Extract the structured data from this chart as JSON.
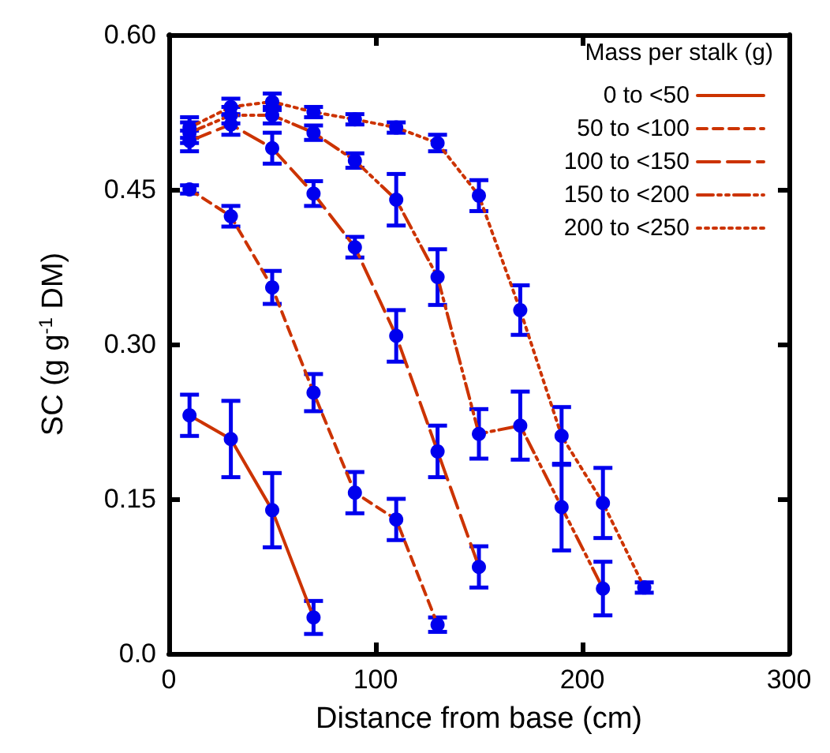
{
  "chart_data": {
    "type": "line",
    "xlabel": "Distance from base (cm)",
    "ylabel": "SC (g g$^{-1}$ DM)",
    "legend_title": "Mass per stalk (g)",
    "legend": "top right",
    "marker": "circle",
    "grid": false,
    "xlim": [
      0,
      300
    ],
    "xticks": [
      0,
      100,
      200,
      300
    ],
    "ylim": [
      0,
      0.6
    ],
    "yticks": [
      {
        "value": 0,
        "label": "0.0"
      },
      0.15,
      {
        "value": 0.3,
        "label": "0.30"
      },
      0.45,
      {
        "value": 0.6,
        "label": "0.60"
      }
    ],
    "series": [
      {
        "name": "0 to <50",
        "color": "#cc3300",
        "line_style": "solid",
        "x": [
          10,
          30,
          50,
          70
        ],
        "values": [
          0.231,
          0.208,
          0.139,
          0.035
        ],
        "errors": [
          0.02,
          0.037,
          0.036,
          0.016
        ]
      },
      {
        "name": "50 to <100",
        "color": "#cc3300",
        "line_style": "dashed",
        "x": [
          10,
          30,
          50,
          70,
          90,
          110,
          130
        ],
        "values": [
          0.45,
          0.424,
          0.355,
          0.253,
          0.156,
          0.13,
          0.028
        ],
        "errors": [
          0.004,
          0.01,
          0.016,
          0.018,
          0.02,
          0.02,
          0.007
        ]
      },
      {
        "name": "100 to <150",
        "color": "#cc3300",
        "line_style": "dashed",
        "x": [
          10,
          30,
          50,
          70,
          90,
          110,
          130,
          150
        ],
        "values": [
          0.497,
          0.513,
          0.49,
          0.446,
          0.394,
          0.308,
          0.196,
          0.084
        ],
        "errors": [
          0.01,
          0.01,
          0.015,
          0.012,
          0.01,
          0.025,
          0.025,
          0.02
        ]
      },
      {
        "name": "150 to <200",
        "color": "#cc3300",
        "line_style": "dashed",
        "x": [
          10,
          30,
          50,
          70,
          90,
          110,
          130,
          150,
          170,
          190,
          210
        ],
        "values": [
          0.505,
          0.522,
          0.522,
          0.505,
          0.478,
          0.44,
          0.365,
          0.213,
          0.221,
          0.142,
          0.063
        ],
        "errors": [
          0.01,
          0.008,
          0.008,
          0.007,
          0.007,
          0.025,
          0.027,
          0.024,
          0.033,
          0.042,
          0.026
        ]
      },
      {
        "name": "200 to <250",
        "color": "#cc3300",
        "line_style": "dotted",
        "x": [
          10,
          30,
          50,
          70,
          90,
          110,
          130,
          150,
          170,
          190,
          210,
          230
        ],
        "values": [
          0.51,
          0.53,
          0.535,
          0.525,
          0.518,
          0.51,
          0.495,
          0.444,
          0.333,
          0.211,
          0.146,
          0.064
        ],
        "errors": [
          0.01,
          0.008,
          0.008,
          0.005,
          0.005,
          0.005,
          0.008,
          0.015,
          0.024,
          0.028,
          0.034,
          0.005
        ]
      }
    ]
  }
}
